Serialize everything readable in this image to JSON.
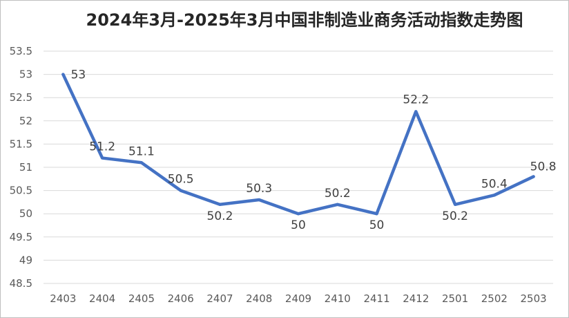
{
  "chart_data": {
    "type": "line",
    "title": "2024年3月-2025年3月中国非制造业商务活动指数走势图",
    "categories": [
      "2403",
      "2404",
      "2405",
      "2406",
      "2407",
      "2408",
      "2409",
      "2410",
      "2411",
      "2412",
      "2501",
      "2502",
      "2503"
    ],
    "series": [
      {
        "values": [
          53,
          51.2,
          51.1,
          50.5,
          50.2,
          50.3,
          50,
          50.2,
          50,
          52.2,
          50.2,
          50.4,
          50.8
        ],
        "labels": [
          "53",
          "51.2",
          "51.1",
          "50.5",
          "50.2",
          "50.3",
          "50",
          "50.2",
          "50",
          "52.2",
          "50.2",
          "50.4",
          "50.8"
        ],
        "color": "#4472c4"
      }
    ],
    "y_ticks": [
      "48.5",
      "49",
      "49.5",
      "50",
      "50.5",
      "51",
      "51.5",
      "52",
      "52.5",
      "53",
      "53.5"
    ],
    "ylim": [
      48.5,
      53.5
    ],
    "grid": true,
    "legend": "none"
  }
}
